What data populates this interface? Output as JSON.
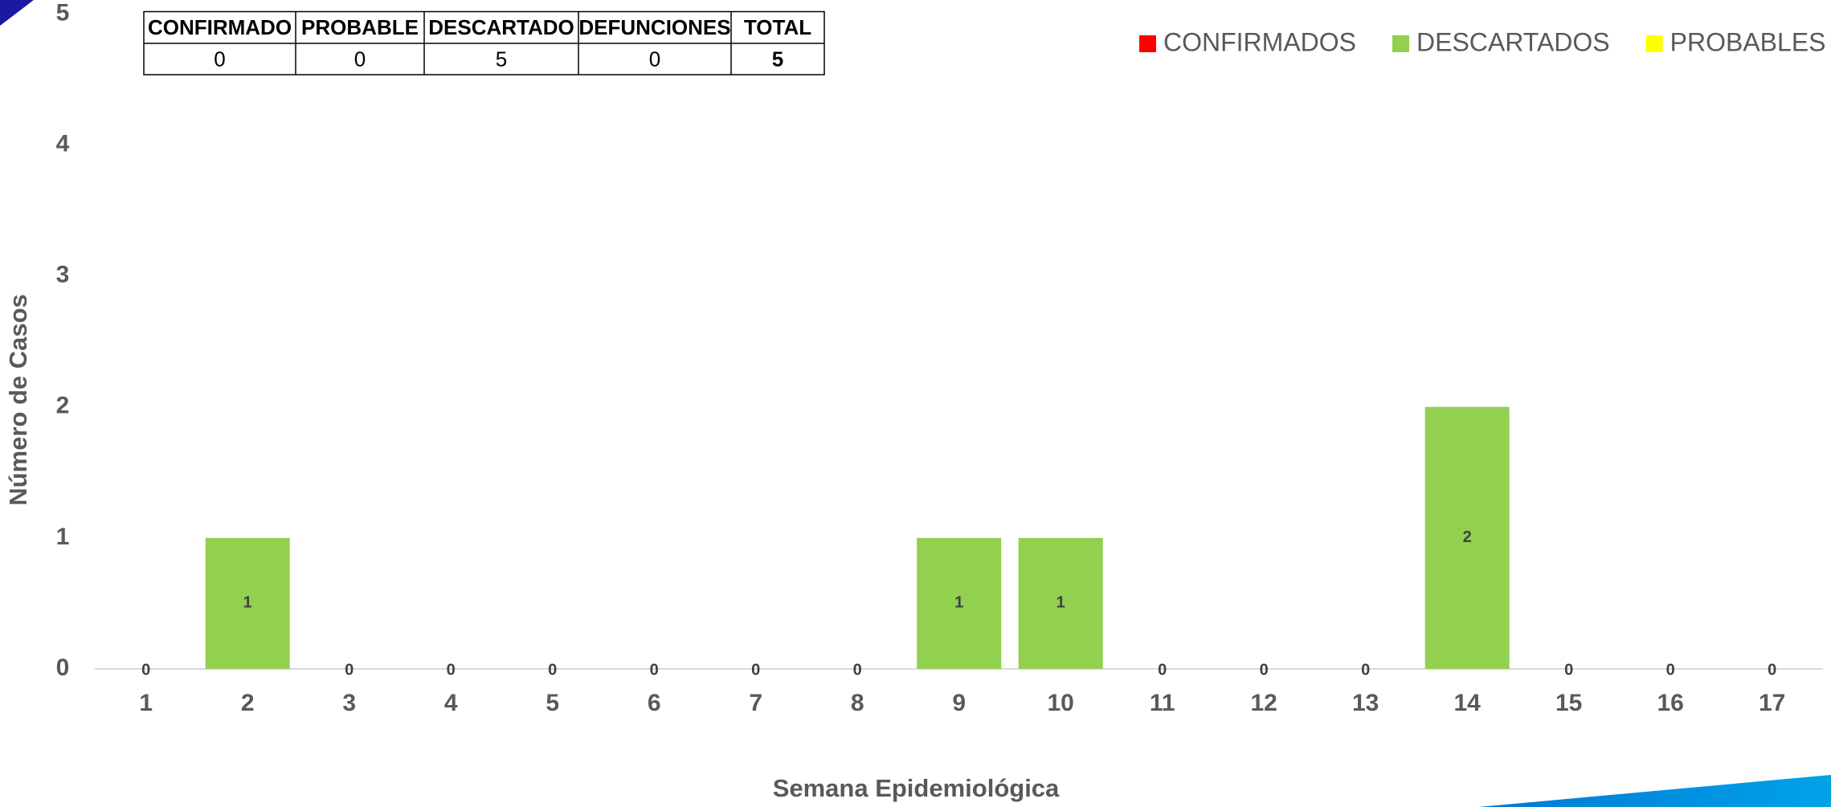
{
  "chart_data": {
    "type": "stacked_bar",
    "x_label": "Semana Epidemiológica",
    "y_label": "Número de Casos",
    "categories": [
      "1",
      "2",
      "3",
      "4",
      "5",
      "6",
      "7",
      "8",
      "9",
      "10",
      "11",
      "12",
      "13",
      "14",
      "15",
      "16",
      "17"
    ],
    "series": [
      {
        "name": "CONFIRMADOS",
        "color": "#ff0000",
        "values": [
          0,
          0,
          0,
          0,
          0,
          0,
          0,
          0,
          0,
          0,
          0,
          0,
          0,
          0,
          0,
          0,
          0
        ]
      },
      {
        "name": "DESCARTADOS",
        "color": "#92d050",
        "values": [
          0,
          1,
          0,
          0,
          0,
          0,
          0,
          0,
          1,
          1,
          0,
          0,
          0,
          2,
          0,
          0,
          0
        ]
      },
      {
        "name": "PROBABLES",
        "color": "#ffff00",
        "values": [
          0,
          0,
          0,
          0,
          0,
          0,
          0,
          0,
          0,
          0,
          0,
          0,
          0,
          0,
          0,
          0,
          0
        ]
      }
    ],
    "ylim": [
      0,
      5
    ],
    "yticks": [
      0,
      1,
      2,
      3,
      4,
      5
    ],
    "grid": false,
    "legend": "top-right"
  },
  "table": {
    "headers": [
      "CONFIRMADO",
      "PROBABLE",
      "DESCARTADO",
      "DEFUNCIONES",
      "TOTAL"
    ],
    "rows": [
      [
        0,
        0,
        5,
        0,
        5
      ]
    ]
  }
}
